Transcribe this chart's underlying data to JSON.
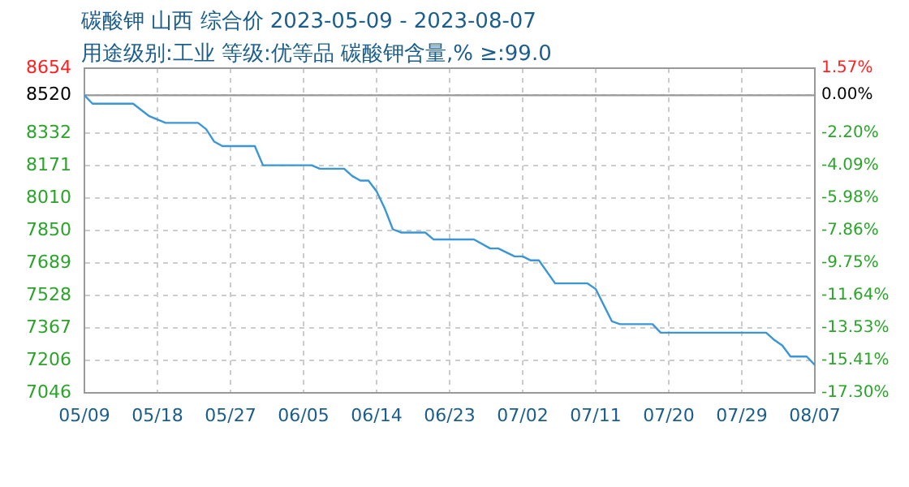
{
  "chart_data": {
    "type": "line",
    "title": "碳酸钾 山西 综合价 2023-05-09 - 2023-08-07",
    "subtitle": "用途级别:工业 等级:优等品 碳酸钾含量,% ≥:99.0",
    "x": [
      "2023-05-09",
      "2023-05-10",
      "2023-05-15",
      "2023-05-17",
      "2023-05-19",
      "2023-05-23",
      "2023-05-24",
      "2023-05-25",
      "2023-05-26",
      "2023-05-30",
      "2023-05-31",
      "2023-06-06",
      "2023-06-07",
      "2023-06-10",
      "2023-06-11",
      "2023-06-12",
      "2023-06-13",
      "2023-06-14",
      "2023-06-15",
      "2023-06-16",
      "2023-06-17",
      "2023-06-20",
      "2023-06-21",
      "2023-06-26",
      "2023-06-28",
      "2023-06-29",
      "2023-07-01",
      "2023-07-02",
      "2023-07-03",
      "2023-07-04",
      "2023-07-06",
      "2023-07-10",
      "2023-07-11",
      "2023-07-13",
      "2023-07-14",
      "2023-07-18",
      "2023-07-19",
      "2023-08-01",
      "2023-08-02",
      "2023-08-03",
      "2023-08-04",
      "2023-08-06",
      "2023-08-07"
    ],
    "series": [
      {
        "color": "#3a96d6",
        "values": [
          8520,
          8478,
          8478,
          8416,
          8383,
          8383,
          8352,
          8290,
          8268,
          8268,
          8173,
          8173,
          8156,
          8156,
          8120,
          8097,
          8097,
          8044,
          7960,
          7856,
          7840,
          7840,
          7806,
          7806,
          7761,
          7761,
          7722,
          7722,
          7702,
          7702,
          7588,
          7588,
          7560,
          7400,
          7386,
          7386,
          7344,
          7344,
          7308,
          7280,
          7226,
          7226,
          7184
        ]
      }
    ],
    "xlim": [
      "2023-05-09",
      "2023-08-07"
    ],
    "xticks": [
      {
        "value": "2023-05-09",
        "label": "05/09"
      },
      {
        "value": "2023-05-18",
        "label": "05/18"
      },
      {
        "value": "2023-05-27",
        "label": "05/27"
      },
      {
        "value": "2023-06-05",
        "label": "06/05"
      },
      {
        "value": "2023-06-14",
        "label": "06/14"
      },
      {
        "value": "2023-06-23",
        "label": "06/23"
      },
      {
        "value": "2023-07-02",
        "label": "07/02"
      },
      {
        "value": "2023-07-11",
        "label": "07/11"
      },
      {
        "value": "2023-07-20",
        "label": "07/20"
      },
      {
        "value": "2023-07-29",
        "label": "07/29"
      },
      {
        "value": "2023-08-07",
        "label": "08/07"
      }
    ],
    "ylim": [
      7046,
      8654
    ],
    "yticks": [
      8654,
      8520,
      8332,
      8171,
      8010,
      7850,
      7689,
      7528,
      7367,
      7206,
      7046
    ],
    "y2lim": [
      -17.3,
      1.57
    ],
    "y2ticks": [
      {
        "value": 1.57,
        "label": "1.57%"
      },
      {
        "value": 0,
        "label": "0.00%"
      },
      {
        "value": -2.2,
        "label": "-2.20%"
      },
      {
        "value": -4.09,
        "label": "-4.09%"
      },
      {
        "value": -5.98,
        "label": "-5.98%"
      },
      {
        "value": -7.86,
        "label": "-7.86%"
      },
      {
        "value": -9.75,
        "label": "-9.75%"
      },
      {
        "value": -11.64,
        "label": "-11.64%"
      },
      {
        "value": -13.53,
        "label": "-13.53%"
      },
      {
        "value": -15.41,
        "label": "-15.41%"
      },
      {
        "value": -17.3,
        "label": "-17.30%"
      }
    ],
    "ref_lines": [
      {
        "axis": "y",
        "value": 8520,
        "color": "#999999"
      }
    ],
    "grid": true,
    "legend": false,
    "marker": "none",
    "line_style": "solid"
  }
}
